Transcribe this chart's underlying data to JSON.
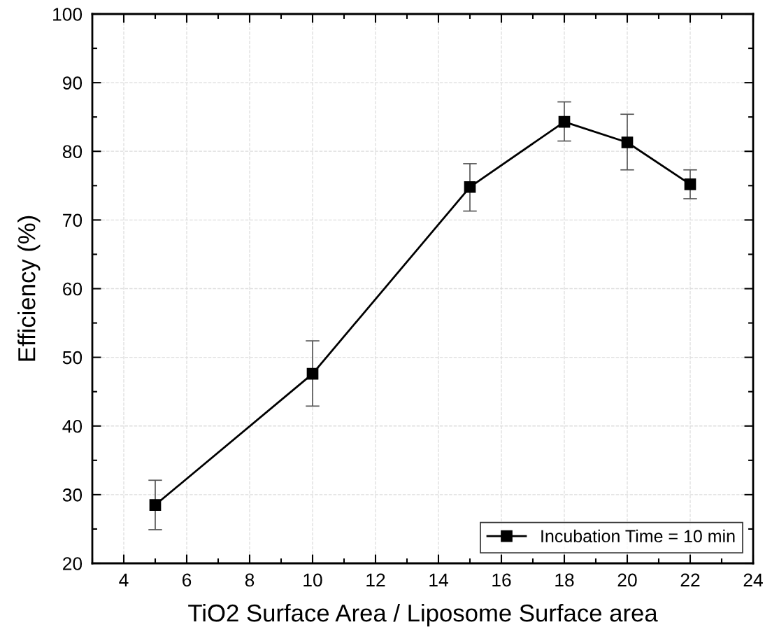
{
  "chart_data": {
    "type": "line",
    "xlabel": "TiO2 Surface Area / Liposome Surface area",
    "ylabel": "Efficiency (%)",
    "x": [
      5,
      10,
      15,
      18,
      20,
      22
    ],
    "series": [
      {
        "name": "Incubation Time = 10 min",
        "color": "#000000",
        "values": [
          28.5,
          47.6,
          74.8,
          84.3,
          81.3,
          75.2
        ],
        "errors": [
          [
            24.9,
            32.1
          ],
          [
            42.9,
            52.4
          ],
          [
            71.3,
            78.2
          ],
          [
            81.5,
            87.2
          ],
          [
            77.3,
            85.4
          ],
          [
            73.1,
            77.3
          ]
        ]
      }
    ],
    "xlim": [
      3,
      24
    ],
    "xticks": [
      4,
      6,
      8,
      10,
      12,
      14,
      16,
      18,
      20,
      22,
      24
    ],
    "ylim": [
      20,
      100
    ],
    "yticks": [
      20,
      30,
      40,
      50,
      60,
      70,
      80,
      90,
      100
    ],
    "grid": true,
    "legend": "bottom right",
    "marker": "square",
    "line_style": "solid"
  }
}
